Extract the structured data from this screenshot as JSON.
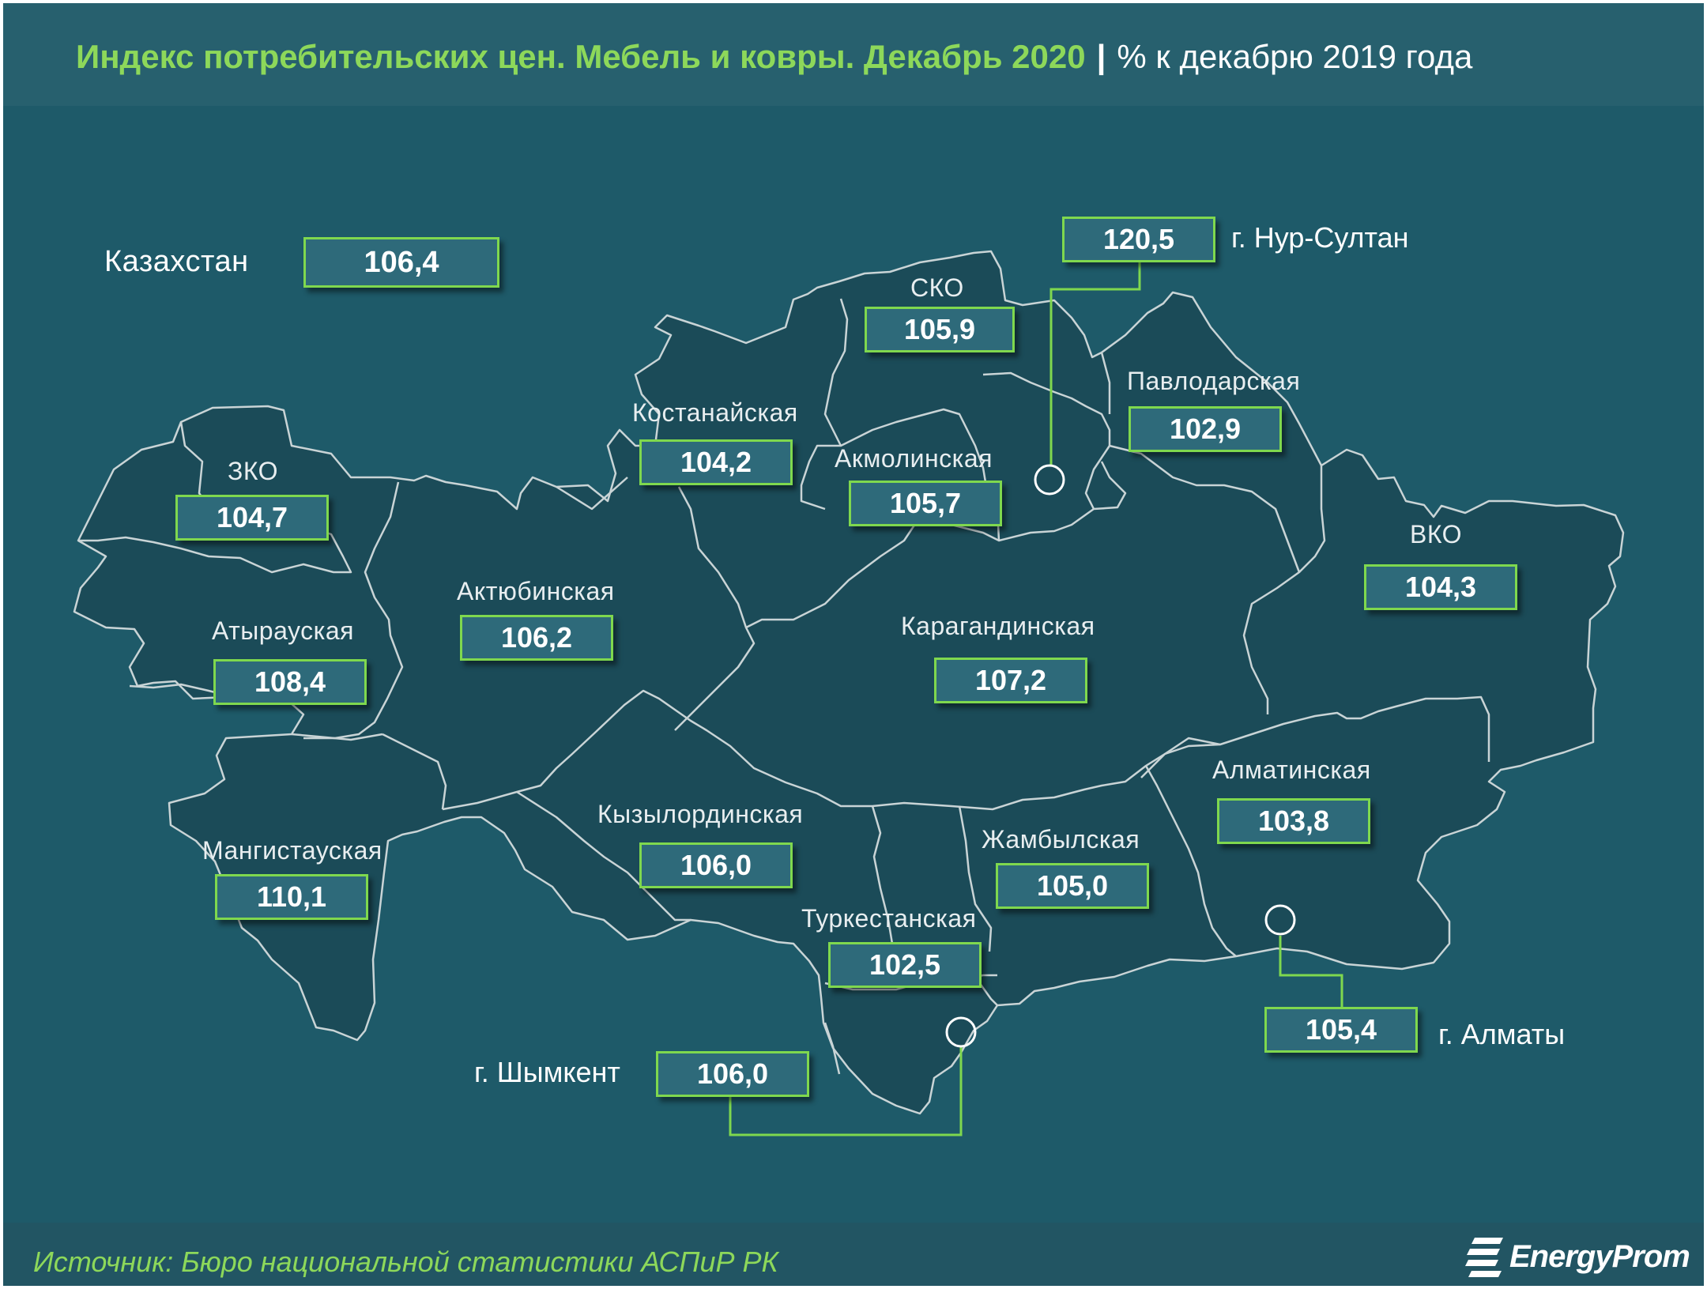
{
  "header": {
    "title": "Индекс потребительских цен. Мебель и ковры. Декабрь 2020",
    "separator": "|",
    "subtitle": "% к декабрю  2019 года"
  },
  "country": {
    "label": "Казахстан",
    "value": "106,4"
  },
  "regions": {
    "sko": {
      "label": "СКО",
      "value": "105,9"
    },
    "kostanay": {
      "label": "Костанайская",
      "value": "104,2"
    },
    "akmola": {
      "label": "Акмолинская",
      "value": "105,7"
    },
    "pavlodar": {
      "label": "Павлодарская",
      "value": "102,9"
    },
    "zko": {
      "label": "ЗКО",
      "value": "104,7"
    },
    "vko": {
      "label": "ВКО",
      "value": "104,3"
    },
    "aktobe": {
      "label": "Актюбинская",
      "value": "106,2"
    },
    "atyrau": {
      "label": "Атырауская",
      "value": "108,4"
    },
    "karaganda": {
      "label": "Карагандинская",
      "value": "107,2"
    },
    "almaty_reg": {
      "label": "Алматинская",
      "value": "103,8"
    },
    "kyzylorda": {
      "label": "Кызылординская",
      "value": "106,0"
    },
    "zhambyl": {
      "label": "Жамбылская",
      "value": "105,0"
    },
    "mangystau": {
      "label": "Мангистауская",
      "value": "110,1"
    },
    "turkestan": {
      "label": "Туркестанская",
      "value": "102,5"
    }
  },
  "cities": {
    "nur_sultan": {
      "label": "г. Нур-Султан",
      "value": "120,5"
    },
    "almaty": {
      "label": "г. Алматы",
      "value": "105,4"
    },
    "shymkent": {
      "label": "г. Шымкент",
      "value": "106,0"
    }
  },
  "footer": {
    "source": "Источник: Бюро национальной  статистики АСПиР РК",
    "logo_text": "EnergyProm"
  },
  "colors": {
    "background": "#1e5a69",
    "region_fill": "#1b4b58",
    "accent_green": "#7fd84e",
    "value_box": "#2e6a7a"
  },
  "icons": {
    "logo": "energyprom-logo-icon",
    "city_marker": "city-marker-icon"
  }
}
